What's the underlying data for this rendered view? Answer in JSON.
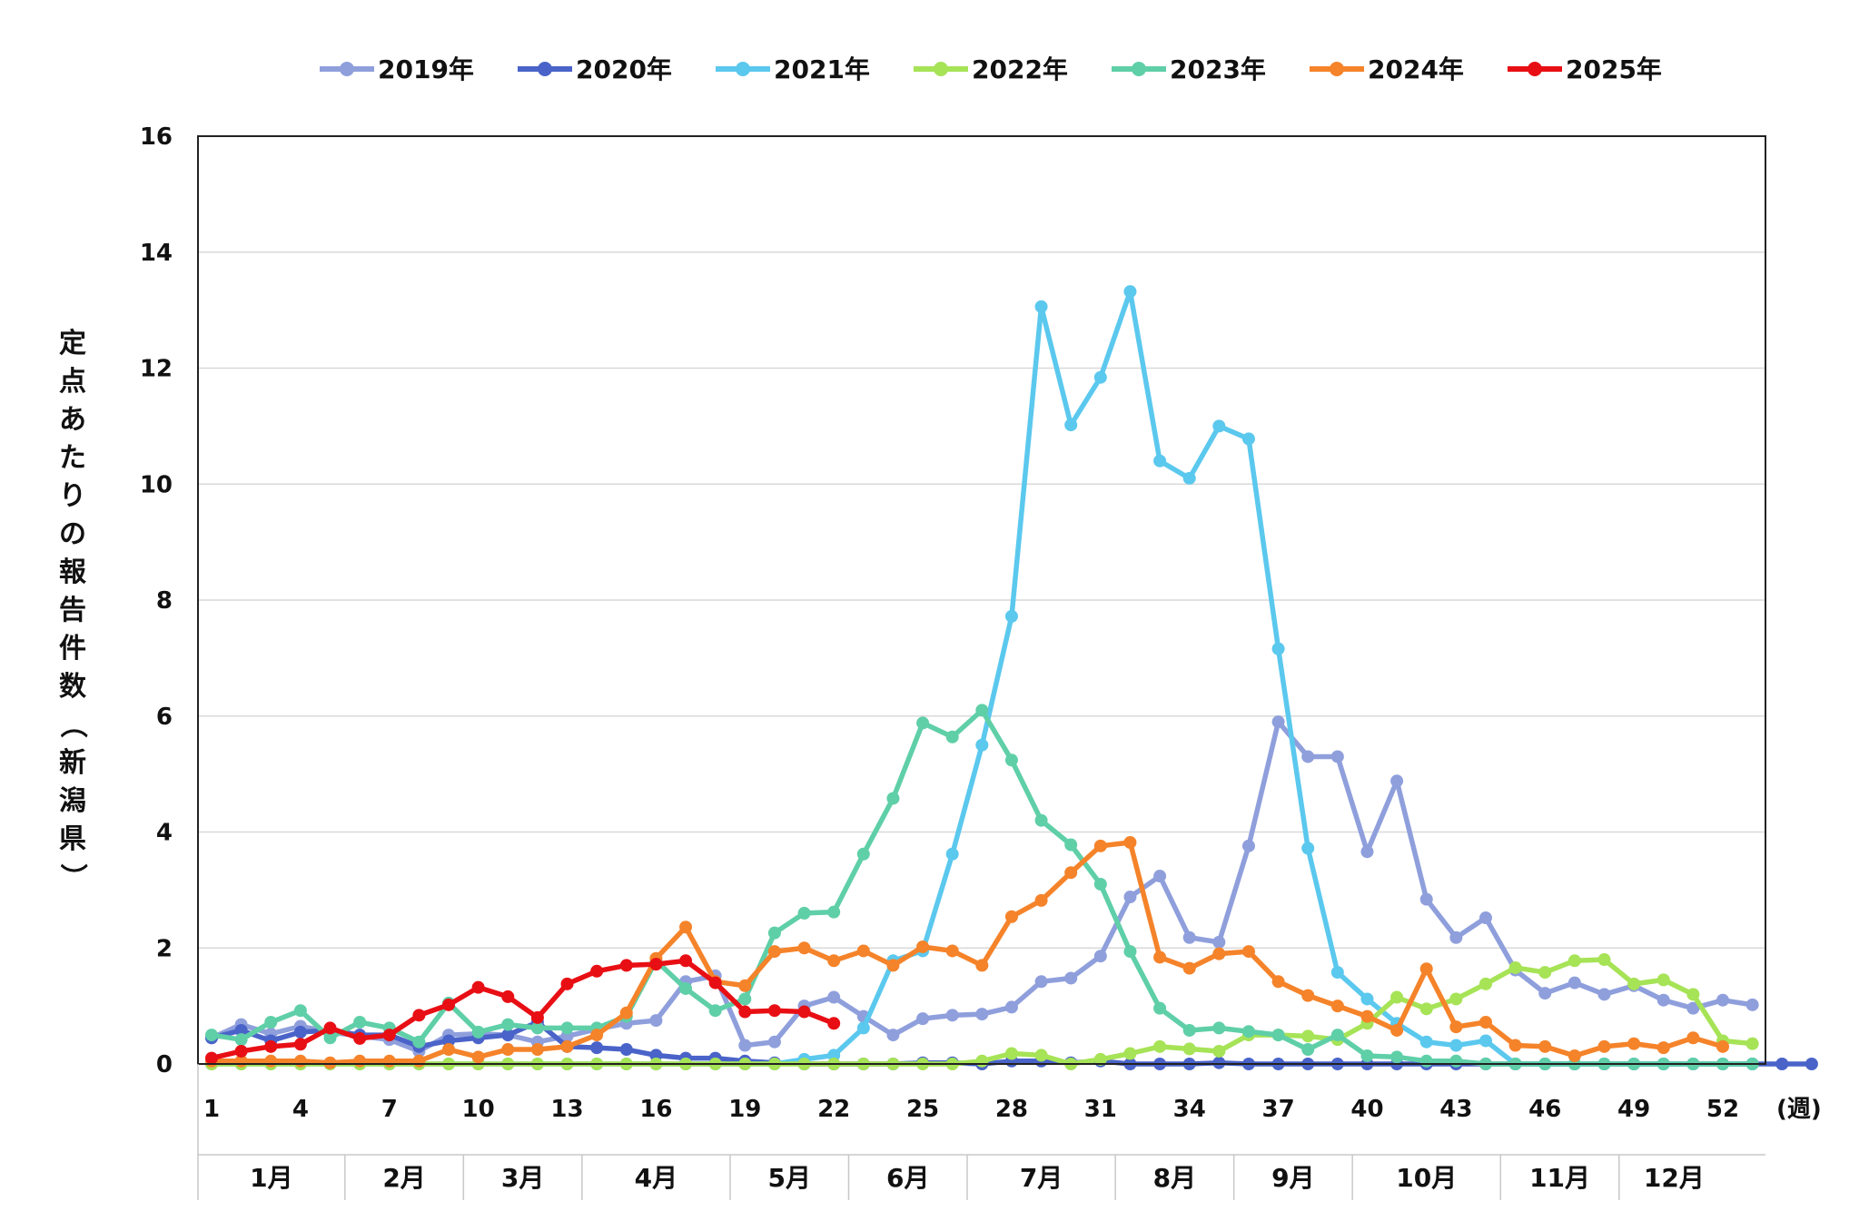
{
  "chart_data": {
    "type": "line",
    "xlabel": "(週)",
    "ylabel": "定点あたりの報告件数（新潟県）",
    "ylim": [
      0,
      16
    ],
    "yticks": [
      0,
      2,
      4,
      6,
      8,
      10,
      12,
      14,
      16
    ],
    "xtick_labels": [
      "1",
      "4",
      "7",
      "10",
      "13",
      "16",
      "19",
      "22",
      "25",
      "28",
      "31",
      "34",
      "37",
      "40",
      "43",
      "46",
      "49",
      "52"
    ],
    "xtick_weeks": [
      1,
      4,
      7,
      10,
      13,
      16,
      19,
      22,
      25,
      28,
      31,
      34,
      37,
      40,
      43,
      46,
      49,
      52
    ],
    "months": [
      {
        "label": "1月",
        "start_week": 0.5,
        "end_week": 5.5
      },
      {
        "label": "2月",
        "start_week": 5.5,
        "end_week": 9.5
      },
      {
        "label": "3月",
        "start_week": 9.5,
        "end_week": 13.5
      },
      {
        "label": "4月",
        "start_week": 13.5,
        "end_week": 18.5
      },
      {
        "label": "5月",
        "start_week": 18.5,
        "end_week": 22.5
      },
      {
        "label": "6月",
        "start_week": 22.5,
        "end_week": 26.5
      },
      {
        "label": "7月",
        "start_week": 26.5,
        "end_week": 31.5
      },
      {
        "label": "8月",
        "start_week": 31.5,
        "end_week": 35.5
      },
      {
        "label": "9月",
        "start_week": 35.5,
        "end_week": 39.5
      },
      {
        "label": "10月",
        "start_week": 39.5,
        "end_week": 44.5
      },
      {
        "label": "11月",
        "start_week": 44.5,
        "end_week": 48.5
      },
      {
        "label": "12月",
        "start_week": 48.5,
        "end_week": 53.5
      }
    ],
    "grid": true,
    "legend_position": "top",
    "series": [
      {
        "name": "2019年",
        "color": "#8f9fdc",
        "x_start": 1,
        "values": [
          0.45,
          0.68,
          0.52,
          0.65,
          0.55,
          0.48,
          0.42,
          0.22,
          0.5,
          0.52,
          0.5,
          0.38,
          0.48,
          0.6,
          0.7,
          0.75,
          1.42,
          1.52,
          0.32,
          0.38,
          1.0,
          1.15,
          0.82,
          0.5,
          0.78,
          0.84,
          0.86,
          0.98,
          1.42,
          1.48,
          1.86,
          2.88,
          3.24,
          2.18,
          2.1,
          3.76,
          5.9,
          5.3,
          5.3,
          3.66,
          4.88,
          2.84,
          2.18,
          2.52,
          1.62,
          1.22,
          1.4,
          1.2,
          1.35,
          1.1,
          0.96,
          1.1,
          1.02
        ]
      },
      {
        "name": "2020年",
        "color": "#4a63c9",
        "x_start": 1,
        "values": [
          0.45,
          0.58,
          0.4,
          0.55,
          0.58,
          0.5,
          0.5,
          0.3,
          0.4,
          0.45,
          0.5,
          0.72,
          0.3,
          0.28,
          0.25,
          0.15,
          0.1,
          0.1,
          0.05,
          0.02,
          0,
          0,
          0,
          0,
          0.02,
          0.02,
          0,
          0.05,
          0.05,
          0.02,
          0.05,
          0,
          0,
          0,
          0.02,
          0,
          0,
          0,
          0,
          0,
          0,
          0,
          0,
          0,
          0,
          0,
          0,
          0,
          0,
          0,
          0,
          0,
          0,
          0,
          0
        ]
      },
      {
        "name": "2021年",
        "color": "#5bc8ee",
        "x_start": 1,
        "values": [
          0,
          0,
          0,
          0,
          0,
          0,
          0,
          0,
          0,
          0,
          0,
          0,
          0,
          0,
          0,
          0,
          0,
          0,
          0,
          0,
          0.08,
          0.15,
          0.62,
          1.78,
          1.95,
          3.62,
          5.5,
          7.72,
          13.06,
          11.02,
          11.84,
          13.32,
          10.4,
          10.1,
          11.0,
          10.78,
          7.16,
          3.72,
          1.58,
          1.12,
          0.7,
          0.38,
          0.32,
          0.4,
          0,
          0,
          0,
          0,
          0,
          0,
          0,
          0,
          0
        ]
      },
      {
        "name": "2022年",
        "color": "#a6e356",
        "x_start": 1,
        "values": [
          0,
          0,
          0,
          0,
          0,
          0,
          0,
          0,
          0,
          0,
          0,
          0,
          0,
          0,
          0,
          0,
          0,
          0,
          0,
          0,
          0,
          0,
          0,
          0,
          0,
          0,
          0.05,
          0.18,
          0.15,
          0,
          0.08,
          0.18,
          0.3,
          0.26,
          0.22,
          0.5,
          0.5,
          0.48,
          0.42,
          0.7,
          1.15,
          0.95,
          1.12,
          1.38,
          1.66,
          1.58,
          1.78,
          1.8,
          1.38,
          1.45,
          1.2,
          0.4,
          0.35
        ]
      },
      {
        "name": "2023年",
        "color": "#5fcfa8",
        "x_start": 1,
        "values": [
          0.5,
          0.42,
          0.72,
          0.92,
          0.45,
          0.72,
          0.62,
          0.38,
          1.05,
          0.55,
          0.68,
          0.62,
          0.62,
          0.62,
          0.82,
          1.78,
          1.3,
          0.92,
          1.12,
          2.26,
          2.6,
          2.62,
          3.62,
          4.58,
          5.88,
          5.64,
          6.1,
          5.24,
          4.2,
          3.78,
          3.1,
          1.94,
          0.96,
          0.58,
          0.62,
          0.56,
          0.5,
          0.25,
          0.5,
          0.14,
          0.12,
          0.05,
          0.05,
          0,
          0,
          0,
          0,
          0,
          0,
          0,
          0,
          0,
          0
        ]
      },
      {
        "name": "2024年",
        "color": "#f5832a",
        "x_start": 1,
        "values": [
          0.05,
          0.05,
          0.05,
          0.05,
          0.02,
          0.05,
          0.05,
          0.05,
          0.25,
          0.12,
          0.25,
          0.25,
          0.3,
          0.5,
          0.88,
          1.82,
          2.36,
          1.42,
          1.35,
          1.94,
          2.0,
          1.78,
          1.95,
          1.7,
          2.02,
          1.95,
          1.7,
          2.54,
          2.82,
          3.3,
          3.76,
          3.82,
          1.84,
          1.65,
          1.9,
          1.94,
          1.42,
          1.18,
          1.0,
          0.82,
          0.58,
          1.64,
          0.64,
          0.72,
          0.32,
          0.3,
          0.14,
          0.3,
          0.35,
          0.28,
          0.45,
          0.3
        ]
      },
      {
        "name": "2025年",
        "color": "#e80f14",
        "x_start": 1,
        "values": [
          0.1,
          0.22,
          0.3,
          0.34,
          0.62,
          0.44,
          0.5,
          0.84,
          1.02,
          1.32,
          1.16,
          0.8,
          1.38,
          1.6,
          1.7,
          1.72,
          1.78,
          1.4,
          0.9,
          0.92,
          0.9,
          0.7
        ]
      }
    ]
  }
}
